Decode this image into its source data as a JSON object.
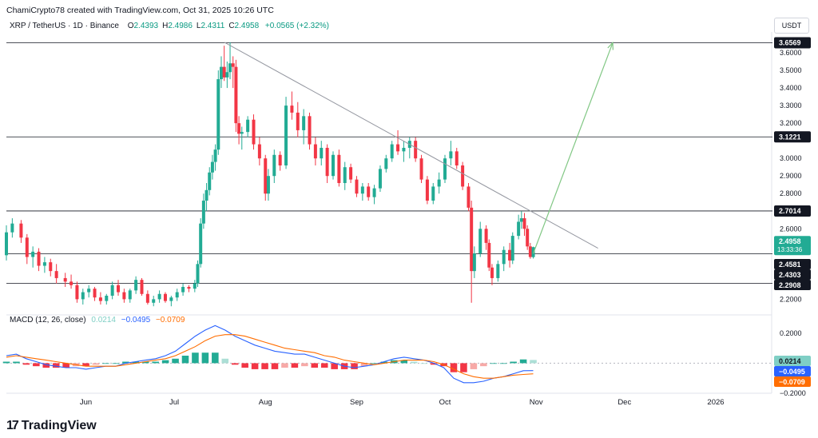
{
  "header": {
    "credit": "ChamiCrypto78 created with TradingView.com, Oct 31, 2025 10:26 UTC",
    "symbol": "XRP / TetherUS · 1D · Binance",
    "ohlc": [
      {
        "k": "O",
        "v": "2.4393"
      },
      {
        "k": "H",
        "v": "2.4986"
      },
      {
        "k": "L",
        "v": "2.4311"
      },
      {
        "k": "C",
        "v": "2.4958"
      }
    ],
    "change": "+0.0565 (+2.32%)"
  },
  "currency_button": "USDT",
  "brand": {
    "name": "TradingView",
    "logo_glyph": "17"
  },
  "colors": {
    "up": "#22ab94",
    "down": "#f23645",
    "macd_line": "#2962ff",
    "signal_line": "#ff6d00",
    "trendline": "#9598a1",
    "target_arrow": "#81c784",
    "level_line": "#131722"
  },
  "chart_data": {
    "type": "candlestick",
    "price_axis": {
      "ticks": [
        "3.6000",
        "3.5000",
        "3.4000",
        "3.3000",
        "3.2000",
        "3.0000",
        "2.9000",
        "2.8000",
        "2.6000",
        "2.2000"
      ],
      "ylim": [
        2.12,
        3.7
      ]
    },
    "time_axis": {
      "labels": [
        {
          "label": "Jun",
          "date": "2025-06-01"
        },
        {
          "label": "Jul",
          "date": "2025-07-01"
        },
        {
          "label": "Aug",
          "date": "2025-08-01"
        },
        {
          "label": "Sep",
          "date": "2025-09-01"
        },
        {
          "label": "Oct",
          "date": "2025-10-01"
        },
        {
          "label": "Nov",
          "date": "2025-11-01"
        },
        {
          "label": "Dec",
          "date": "2025-12-01"
        },
        {
          "label": "2026",
          "date": "2026-01-01"
        }
      ],
      "xlim": [
        "2025-05-05",
        "2026-01-20"
      ]
    },
    "horizontal_levels": [
      {
        "value": 3.6569,
        "label": "3.6569"
      },
      {
        "value": 3.1221,
        "label": "3.1221"
      },
      {
        "value": 2.7014,
        "label": "2.7014"
      },
      {
        "value": 2.4581,
        "label": "2.4581"
      },
      {
        "value": 2.2908,
        "label": "2.2908"
      }
    ],
    "price_labels": [
      {
        "value": 2.4958,
        "label": "2.4958",
        "sub": "13:33:36",
        "style": "last"
      },
      {
        "value": 2.4581,
        "label": "2.4581",
        "style": "level"
      },
      {
        "value": 2.4303,
        "label": "2.4303",
        "style": "level"
      },
      {
        "value": 2.2908,
        "label": "2.2908",
        "style": "level"
      }
    ],
    "trendline": {
      "from": {
        "date": "2025-07-18",
        "value": 3.66
      },
      "to": {
        "date": "2025-11-22",
        "value": 2.49
      }
    },
    "target_arrow": {
      "from": {
        "date": "2025-10-31",
        "value": 2.46
      },
      "to": {
        "date": "2025-11-27",
        "value": 3.6569
      }
    },
    "candles_ohlc": [
      [
        "2025-05-05",
        2.45,
        2.62,
        2.42,
        2.58
      ],
      [
        "2025-05-07",
        2.58,
        2.66,
        2.55,
        2.63
      ],
      [
        "2025-05-10",
        2.63,
        2.65,
        2.52,
        2.55
      ],
      [
        "2025-05-12",
        2.55,
        2.57,
        2.4,
        2.44
      ],
      [
        "2025-05-14",
        2.44,
        2.5,
        2.38,
        2.47
      ],
      [
        "2025-05-16",
        2.47,
        2.49,
        2.36,
        2.39
      ],
      [
        "2025-05-18",
        2.39,
        2.44,
        2.35,
        2.41
      ],
      [
        "2025-05-20",
        2.41,
        2.43,
        2.33,
        2.36
      ],
      [
        "2025-05-22",
        2.36,
        2.4,
        2.29,
        2.32
      ],
      [
        "2025-05-25",
        2.32,
        2.35,
        2.27,
        2.3
      ],
      [
        "2025-05-27",
        2.3,
        2.34,
        2.26,
        2.28
      ],
      [
        "2025-05-29",
        2.28,
        2.3,
        2.18,
        2.2
      ],
      [
        "2025-05-31",
        2.2,
        2.26,
        2.17,
        2.24
      ],
      [
        "2025-06-02",
        2.24,
        2.28,
        2.21,
        2.26
      ],
      [
        "2025-06-04",
        2.26,
        2.27,
        2.19,
        2.21
      ],
      [
        "2025-06-06",
        2.21,
        2.24,
        2.17,
        2.19
      ],
      [
        "2025-06-08",
        2.19,
        2.23,
        2.17,
        2.22
      ],
      [
        "2025-06-10",
        2.22,
        2.3,
        2.2,
        2.28
      ],
      [
        "2025-06-12",
        2.28,
        2.31,
        2.22,
        2.24
      ],
      [
        "2025-06-14",
        2.24,
        2.26,
        2.18,
        2.2
      ],
      [
        "2025-06-16",
        2.2,
        2.26,
        2.18,
        2.25
      ],
      [
        "2025-06-18",
        2.25,
        2.33,
        2.23,
        2.31
      ],
      [
        "2025-06-20",
        2.31,
        2.32,
        2.22,
        2.23
      ],
      [
        "2025-06-22",
        2.23,
        2.25,
        2.17,
        2.18
      ],
      [
        "2025-06-24",
        2.18,
        2.22,
        2.16,
        2.2
      ],
      [
        "2025-06-26",
        2.2,
        2.25,
        2.18,
        2.23
      ],
      [
        "2025-06-28",
        2.23,
        2.24,
        2.18,
        2.19
      ],
      [
        "2025-06-30",
        2.19,
        2.22,
        2.16,
        2.21
      ],
      [
        "2025-07-02",
        2.21,
        2.26,
        2.19,
        2.24
      ],
      [
        "2025-07-04",
        2.24,
        2.29,
        2.22,
        2.27
      ],
      [
        "2025-07-06",
        2.27,
        2.28,
        2.24,
        2.26
      ],
      [
        "2025-07-08",
        2.26,
        2.31,
        2.24,
        2.29
      ],
      [
        "2025-07-09",
        2.29,
        2.42,
        2.27,
        2.4
      ],
      [
        "2025-07-10",
        2.4,
        2.66,
        2.38,
        2.63
      ],
      [
        "2025-07-11",
        2.63,
        2.8,
        2.6,
        2.76
      ],
      [
        "2025-07-12",
        2.76,
        2.86,
        2.7,
        2.82
      ],
      [
        "2025-07-13",
        2.82,
        2.95,
        2.79,
        2.92
      ],
      [
        "2025-07-14",
        2.92,
        3.02,
        2.88,
        2.98
      ],
      [
        "2025-07-15",
        2.98,
        3.08,
        2.93,
        3.05
      ],
      [
        "2025-07-16",
        3.05,
        3.5,
        3.02,
        3.45
      ],
      [
        "2025-07-17",
        3.45,
        3.58,
        3.4,
        3.52
      ],
      [
        "2025-07-18",
        3.52,
        3.64,
        3.44,
        3.46
      ],
      [
        "2025-07-19",
        3.46,
        3.55,
        3.4,
        3.49
      ],
      [
        "2025-07-20",
        3.49,
        3.66,
        3.45,
        3.54
      ],
      [
        "2025-07-21",
        3.54,
        3.58,
        3.4,
        3.52
      ],
      [
        "2025-07-22",
        3.52,
        3.56,
        3.15,
        3.2
      ],
      [
        "2025-07-23",
        3.2,
        3.24,
        3.08,
        3.14
      ],
      [
        "2025-07-24",
        3.14,
        3.18,
        3.05,
        3.15
      ],
      [
        "2025-07-26",
        3.15,
        3.24,
        3.12,
        3.22
      ],
      [
        "2025-07-28",
        3.22,
        3.25,
        3.05,
        3.08
      ],
      [
        "2025-07-30",
        3.08,
        3.12,
        2.96,
        3.0
      ],
      [
        "2025-08-01",
        3.0,
        3.02,
        2.76,
        2.8
      ],
      [
        "2025-08-02",
        2.8,
        2.94,
        2.76,
        2.9
      ],
      [
        "2025-08-04",
        2.9,
        3.05,
        2.86,
        3.02
      ],
      [
        "2025-08-06",
        3.02,
        3.04,
        2.93,
        2.96
      ],
      [
        "2025-08-08",
        2.96,
        3.35,
        2.94,
        3.3
      ],
      [
        "2025-08-10",
        3.3,
        3.38,
        3.22,
        3.26
      ],
      [
        "2025-08-12",
        3.26,
        3.32,
        3.12,
        3.16
      ],
      [
        "2025-08-14",
        3.16,
        3.28,
        3.08,
        3.24
      ],
      [
        "2025-08-16",
        3.24,
        3.26,
        3.05,
        3.08
      ],
      [
        "2025-08-18",
        3.08,
        3.12,
        2.96,
        3.0
      ],
      [
        "2025-08-20",
        3.0,
        3.1,
        2.96,
        3.06
      ],
      [
        "2025-08-22",
        3.06,
        3.08,
        2.86,
        2.9
      ],
      [
        "2025-08-24",
        2.9,
        3.04,
        2.88,
        3.02
      ],
      [
        "2025-08-26",
        3.02,
        3.05,
        2.84,
        2.86
      ],
      [
        "2025-08-28",
        2.86,
        2.98,
        2.82,
        2.95
      ],
      [
        "2025-08-30",
        2.95,
        2.97,
        2.86,
        2.88
      ],
      [
        "2025-09-01",
        2.88,
        2.9,
        2.78,
        2.8
      ],
      [
        "2025-09-03",
        2.8,
        2.86,
        2.76,
        2.84
      ],
      [
        "2025-09-05",
        2.84,
        2.86,
        2.76,
        2.78
      ],
      [
        "2025-09-07",
        2.78,
        2.85,
        2.74,
        2.83
      ],
      [
        "2025-09-09",
        2.83,
        2.96,
        2.81,
        2.94
      ],
      [
        "2025-09-11",
        2.94,
        3.02,
        2.92,
        3.0
      ],
      [
        "2025-09-13",
        3.0,
        3.1,
        2.98,
        3.08
      ],
      [
        "2025-09-15",
        3.08,
        3.16,
        3.02,
        3.04
      ],
      [
        "2025-09-17",
        3.04,
        3.1,
        2.98,
        3.06
      ],
      [
        "2025-09-19",
        3.06,
        3.12,
        3.0,
        3.1
      ],
      [
        "2025-09-21",
        3.1,
        3.12,
        2.98,
        3.0
      ],
      [
        "2025-09-23",
        3.0,
        3.02,
        2.86,
        2.88
      ],
      [
        "2025-09-25",
        2.88,
        2.9,
        2.74,
        2.76
      ],
      [
        "2025-09-27",
        2.76,
        2.86,
        2.74,
        2.84
      ],
      [
        "2025-09-29",
        2.84,
        2.92,
        2.8,
        2.88
      ],
      [
        "2025-10-01",
        2.88,
        3.02,
        2.86,
        3.0
      ],
      [
        "2025-10-03",
        3.0,
        3.1,
        2.96,
        3.04
      ],
      [
        "2025-10-05",
        3.04,
        3.06,
        2.94,
        2.96
      ],
      [
        "2025-10-07",
        2.96,
        2.98,
        2.82,
        2.84
      ],
      [
        "2025-10-09",
        2.84,
        2.86,
        2.7,
        2.72
      ],
      [
        "2025-10-10",
        2.72,
        2.76,
        2.18,
        2.36
      ],
      [
        "2025-10-11",
        2.36,
        2.5,
        2.32,
        2.46
      ],
      [
        "2025-10-13",
        2.46,
        2.64,
        2.44,
        2.6
      ],
      [
        "2025-10-15",
        2.6,
        2.62,
        2.48,
        2.52
      ],
      [
        "2025-10-16",
        2.52,
        2.54,
        2.36,
        2.38
      ],
      [
        "2025-10-17",
        2.38,
        2.4,
        2.28,
        2.32
      ],
      [
        "2025-10-19",
        2.32,
        2.42,
        2.3,
        2.4
      ],
      [
        "2025-10-21",
        2.4,
        2.5,
        2.36,
        2.48
      ],
      [
        "2025-10-23",
        2.48,
        2.52,
        2.38,
        2.42
      ],
      [
        "2025-10-24",
        2.42,
        2.58,
        2.4,
        2.56
      ],
      [
        "2025-10-26",
        2.56,
        2.68,
        2.54,
        2.64
      ],
      [
        "2025-10-27",
        2.64,
        2.7,
        2.6,
        2.66
      ],
      [
        "2025-10-28",
        2.66,
        2.69,
        2.56,
        2.6
      ],
      [
        "2025-10-29",
        2.6,
        2.62,
        2.48,
        2.5
      ],
      [
        "2025-10-30",
        2.5,
        2.52,
        2.43,
        2.44
      ],
      [
        "2025-10-31",
        2.4393,
        2.4986,
        2.4311,
        2.4958
      ]
    ],
    "macd": {
      "title": "MACD (12, 26, close)",
      "values": [
        {
          "label": "0.0214",
          "color": "#7fcfc5"
        },
        {
          "label": "−0.0495",
          "color": "#2962ff"
        },
        {
          "label": "−0.0709",
          "color": "#ff6d00"
        }
      ],
      "axis_ticks": [
        "0.2000",
        "−0.2000"
      ],
      "ylim": [
        -0.2,
        0.3
      ],
      "macd_line": [
        0.05,
        0.06,
        0.03,
        0.01,
        -0.01,
        -0.02,
        -0.03,
        -0.03,
        -0.04,
        -0.03,
        -0.02,
        -0.02,
        0.0,
        0.01,
        0.02,
        0.03,
        0.05,
        0.08,
        0.13,
        0.18,
        0.22,
        0.25,
        0.22,
        0.18,
        0.15,
        0.12,
        0.1,
        0.08,
        0.07,
        0.06,
        0.06,
        0.04,
        0.02,
        0.0,
        -0.02,
        -0.03,
        -0.02,
        -0.01,
        0.01,
        0.03,
        0.04,
        0.03,
        0.02,
        0.0,
        -0.03,
        -0.1,
        -0.13,
        -0.13,
        -0.12,
        -0.1,
        -0.09,
        -0.07,
        -0.05,
        -0.0495
      ],
      "signal_line": [
        0.04,
        0.05,
        0.04,
        0.03,
        0.02,
        0.01,
        0.0,
        -0.01,
        -0.02,
        -0.02,
        -0.02,
        -0.02,
        -0.01,
        0.0,
        0.01,
        0.02,
        0.03,
        0.05,
        0.08,
        0.11,
        0.15,
        0.18,
        0.19,
        0.19,
        0.18,
        0.16,
        0.14,
        0.12,
        0.1,
        0.09,
        0.08,
        0.07,
        0.05,
        0.04,
        0.02,
        0.01,
        0.0,
        -0.01,
        0.0,
        0.01,
        0.02,
        0.02,
        0.02,
        0.01,
        -0.01,
        -0.04,
        -0.07,
        -0.09,
        -0.1,
        -0.1,
        -0.09,
        -0.08,
        -0.075,
        -0.0709
      ],
      "histogram": [
        0.01,
        0.01,
        -0.01,
        -0.02,
        -0.03,
        -0.03,
        -0.03,
        -0.02,
        -0.02,
        -0.01,
        0.0,
        0.0,
        0.01,
        0.01,
        0.01,
        0.01,
        0.02,
        0.03,
        0.05,
        0.07,
        0.07,
        0.07,
        0.03,
        -0.01,
        -0.03,
        -0.04,
        -0.04,
        -0.04,
        -0.03,
        -0.03,
        -0.02,
        -0.03,
        -0.03,
        -0.04,
        -0.04,
        -0.04,
        -0.02,
        0.0,
        0.01,
        0.02,
        0.02,
        0.01,
        0.0,
        -0.01,
        -0.02,
        -0.06,
        -0.06,
        -0.04,
        -0.02,
        0.0,
        0.0,
        0.01,
        0.025,
        0.0214
      ]
    }
  }
}
